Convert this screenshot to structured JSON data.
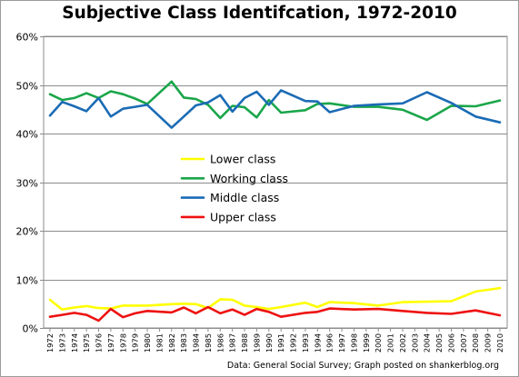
{
  "chart_data": {
    "type": "line",
    "title": "Subjective Class Identifcation, 1972-2010",
    "source_note": "Data: General Social Survey; Graph posted on shankerblog.org",
    "xlabel": "",
    "ylabel": "",
    "ylim": [
      0,
      0.6
    ],
    "y_ticks": [
      0,
      0.1,
      0.2,
      0.3,
      0.4,
      0.5,
      0.6
    ],
    "y_tick_labels": [
      "0%",
      "10%",
      "20%",
      "30%",
      "40%",
      "50%",
      "60%"
    ],
    "grid": true,
    "legend_position": "center",
    "x": [
      "1972",
      "1973",
      "1974",
      "1975",
      "1976",
      "1977",
      "1978",
      "1979",
      "1980",
      "1982",
      "1983",
      "1984",
      "1985",
      "1986",
      "1987",
      "1988",
      "1989",
      "1990",
      "1991",
      "1993",
      "1994",
      "1996",
      "1998",
      "2000",
      "2002",
      "2004",
      "2006",
      "2008",
      "2010"
    ],
    "x_tick_labels": [
      "1972",
      "1973",
      "1974",
      "1975",
      "1976",
      "1977",
      "1978",
      "1979",
      "1980",
      "1981",
      "1982",
      "1983",
      "1984",
      "1985",
      "1986",
      "1987",
      "1988",
      "1989",
      "1990",
      "1991",
      "1992",
      "1993",
      "1994",
      "1996",
      "1997",
      "1998",
      "1999",
      "2000",
      "2001",
      "2002",
      "2003",
      "2004",
      "2005",
      "2006",
      "2007",
      "2008",
      "2009",
      "2010"
    ],
    "series": [
      {
        "name": "Lower class",
        "color": "#ffff00",
        "values": [
          0.058,
          0.038,
          0.042,
          0.045,
          0.041,
          0.04,
          0.046,
          0.046,
          0.046,
          0.049,
          0.05,
          0.049,
          0.041,
          0.059,
          0.058,
          0.046,
          0.043,
          0.039,
          0.043,
          0.052,
          0.043,
          0.053,
          0.051,
          0.046,
          0.053,
          0.054,
          0.055,
          0.075,
          0.082
        ]
      },
      {
        "name": "Working class",
        "color": "#1aa64a",
        "values": [
          0.481,
          0.469,
          0.473,
          0.483,
          0.473,
          0.487,
          0.481,
          0.472,
          0.461,
          0.507,
          0.474,
          0.471,
          0.459,
          0.432,
          0.457,
          0.454,
          0.433,
          0.469,
          0.443,
          0.448,
          0.461,
          0.462,
          0.455,
          0.455,
          0.449,
          0.428,
          0.457,
          0.456,
          0.468
        ]
      },
      {
        "name": "Middle class",
        "color": "#1b6bb5",
        "values": [
          0.437,
          0.465,
          0.456,
          0.446,
          0.473,
          0.435,
          0.451,
          0.455,
          0.459,
          0.412,
          0.435,
          0.458,
          0.464,
          0.479,
          0.445,
          0.473,
          0.486,
          0.459,
          0.489,
          0.467,
          0.466,
          0.444,
          0.457,
          0.46,
          0.462,
          0.485,
          0.463,
          0.435,
          0.423
        ]
      },
      {
        "name": "Upper class",
        "color": "#ee1111",
        "values": [
          0.023,
          0.027,
          0.031,
          0.027,
          0.015,
          0.039,
          0.022,
          0.03,
          0.035,
          0.032,
          0.042,
          0.03,
          0.043,
          0.03,
          0.038,
          0.027,
          0.039,
          0.033,
          0.023,
          0.031,
          0.033,
          0.04,
          0.038,
          0.039,
          0.035,
          0.031,
          0.029,
          0.036,
          0.026
        ]
      }
    ]
  }
}
